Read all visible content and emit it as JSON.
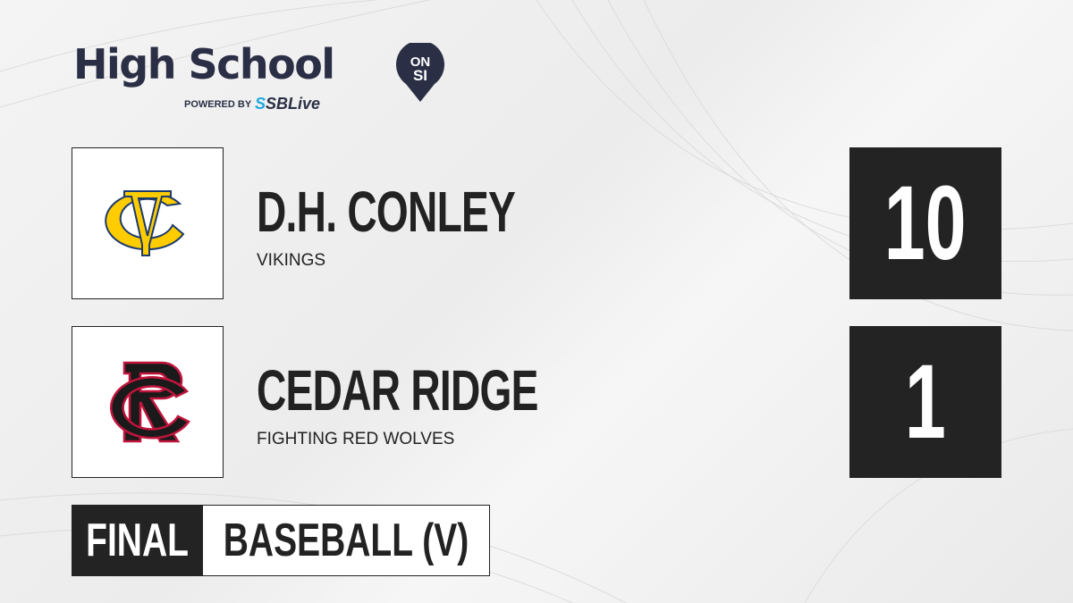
{
  "brand": {
    "title": "High School",
    "pin_top": "ON",
    "pin_bottom": "SI",
    "powered_by": "POWERED BY",
    "partner_prefix": "S",
    "partner": "SBLive",
    "color": "#2a2f45",
    "partner_color": "#1ea8e0"
  },
  "teams": [
    {
      "name": "D.H. CONLEY",
      "mascot": "VIKINGS",
      "score": "10",
      "logo_icon": "dc-monogram-logo",
      "logo_colors": [
        "#ffcc00",
        "#1c3a6b"
      ]
    },
    {
      "name": "CEDAR RIDGE",
      "mascot": "FIGHTING RED WOLVES",
      "score": "1",
      "logo_icon": "cr-monogram-logo",
      "logo_colors": [
        "#1a1a1a",
        "#c0143c"
      ]
    }
  ],
  "game": {
    "status": "FINAL",
    "sport": "BASEBALL (V)"
  }
}
